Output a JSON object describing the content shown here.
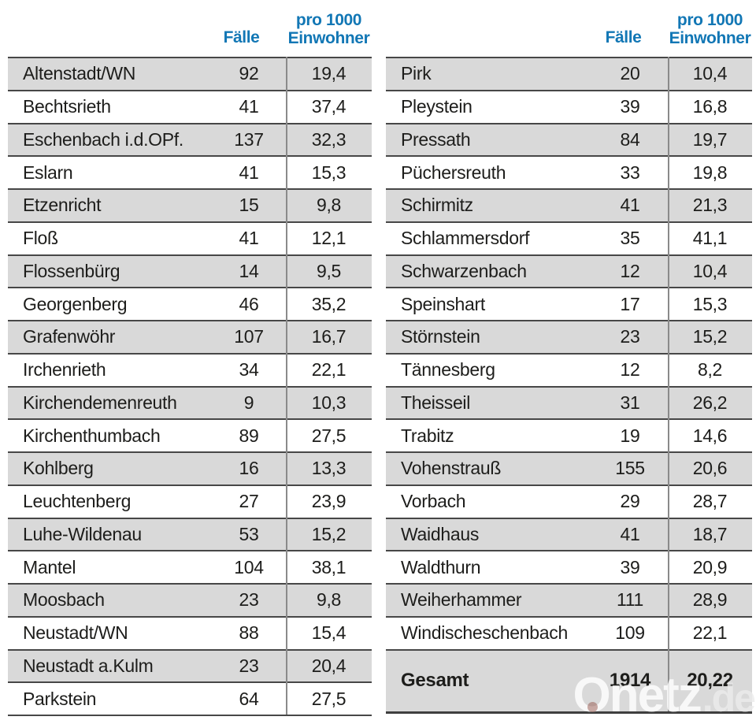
{
  "header": {
    "faelle": "Fälle",
    "pro1000_line1": "pro 1000",
    "pro1000_line2": "Einwohner"
  },
  "colors": {
    "header_blue": "#1277b5",
    "row_shaded": "#d9d9d9",
    "row_plain": "#ffffff",
    "border_dark": "#474747",
    "divider_gray": "#8a8a8a",
    "text": "#1d1d1b",
    "watermark_dot": "#8c463c"
  },
  "left_table": {
    "rows": [
      {
        "name": "Altenstadt/WN",
        "faelle": "92",
        "pro1000": "19,4"
      },
      {
        "name": "Bechtsrieth",
        "faelle": "41",
        "pro1000": "37,4"
      },
      {
        "name": "Eschenbach i.d.OPf.",
        "faelle": "137",
        "pro1000": "32,3"
      },
      {
        "name": "Eslarn",
        "faelle": "41",
        "pro1000": "15,3"
      },
      {
        "name": "Etzenricht",
        "faelle": "15",
        "pro1000": "9,8"
      },
      {
        "name": "Floß",
        "faelle": "41",
        "pro1000": "12,1"
      },
      {
        "name": "Flossenbürg",
        "faelle": "14",
        "pro1000": "9,5"
      },
      {
        "name": "Georgenberg",
        "faelle": "46",
        "pro1000": "35,2"
      },
      {
        "name": "Grafenwöhr",
        "faelle": "107",
        "pro1000": "16,7"
      },
      {
        "name": "Irchenrieth",
        "faelle": "34",
        "pro1000": "22,1"
      },
      {
        "name": "Kirchendemenreuth",
        "faelle": "9",
        "pro1000": "10,3"
      },
      {
        "name": "Kirchenthumbach",
        "faelle": "89",
        "pro1000": "27,5"
      },
      {
        "name": "Kohlberg",
        "faelle": "16",
        "pro1000": "13,3"
      },
      {
        "name": "Leuchtenberg",
        "faelle": "27",
        "pro1000": "23,9"
      },
      {
        "name": "Luhe-Wildenau",
        "faelle": "53",
        "pro1000": "15,2"
      },
      {
        "name": "Mantel",
        "faelle": "104",
        "pro1000": "38,1"
      },
      {
        "name": "Moosbach",
        "faelle": "23",
        "pro1000": "9,8"
      },
      {
        "name": "Neustadt/WN",
        "faelle": "88",
        "pro1000": "15,4"
      },
      {
        "name": "Neustadt a.Kulm",
        "faelle": "23",
        "pro1000": "20,4"
      },
      {
        "name": "Parkstein",
        "faelle": "64",
        "pro1000": "27,5"
      }
    ]
  },
  "right_table": {
    "rows": [
      {
        "name": "Pirk",
        "faelle": "20",
        "pro1000": "10,4"
      },
      {
        "name": "Pleystein",
        "faelle": "39",
        "pro1000": "16,8"
      },
      {
        "name": "Pressath",
        "faelle": "84",
        "pro1000": "19,7"
      },
      {
        "name": "Püchersreuth",
        "faelle": "33",
        "pro1000": "19,8"
      },
      {
        "name": "Schirmitz",
        "faelle": "41",
        "pro1000": "21,3"
      },
      {
        "name": "Schlammersdorf",
        "faelle": "35",
        "pro1000": "41,1"
      },
      {
        "name": "Schwarzenbach",
        "faelle": "12",
        "pro1000": "10,4"
      },
      {
        "name": "Speinshart",
        "faelle": "17",
        "pro1000": "15,3"
      },
      {
        "name": "Störnstein",
        "faelle": "23",
        "pro1000": "15,2"
      },
      {
        "name": "Tännesberg",
        "faelle": "12",
        "pro1000": "8,2"
      },
      {
        "name": "Theisseil",
        "faelle": "31",
        "pro1000": "26,2"
      },
      {
        "name": "Trabitz",
        "faelle": "19",
        "pro1000": "14,6"
      },
      {
        "name": "Vohenstrauß",
        "faelle": "155",
        "pro1000": "20,6"
      },
      {
        "name": "Vorbach",
        "faelle": "29",
        "pro1000": "28,7"
      },
      {
        "name": "Waidhaus",
        "faelle": "41",
        "pro1000": "18,7"
      },
      {
        "name": "Waldthurn",
        "faelle": "39",
        "pro1000": "20,9"
      },
      {
        "name": "Weiherhammer",
        "faelle": "111",
        "pro1000": "28,9"
      },
      {
        "name": "Windischeschenbach",
        "faelle": "109",
        "pro1000": "22,1"
      }
    ],
    "total_row": {
      "name": "Gesamt",
      "faelle": "1914",
      "pro1000": "20,22"
    }
  },
  "watermark": {
    "brand": "Onetz",
    "tld": ".de"
  }
}
